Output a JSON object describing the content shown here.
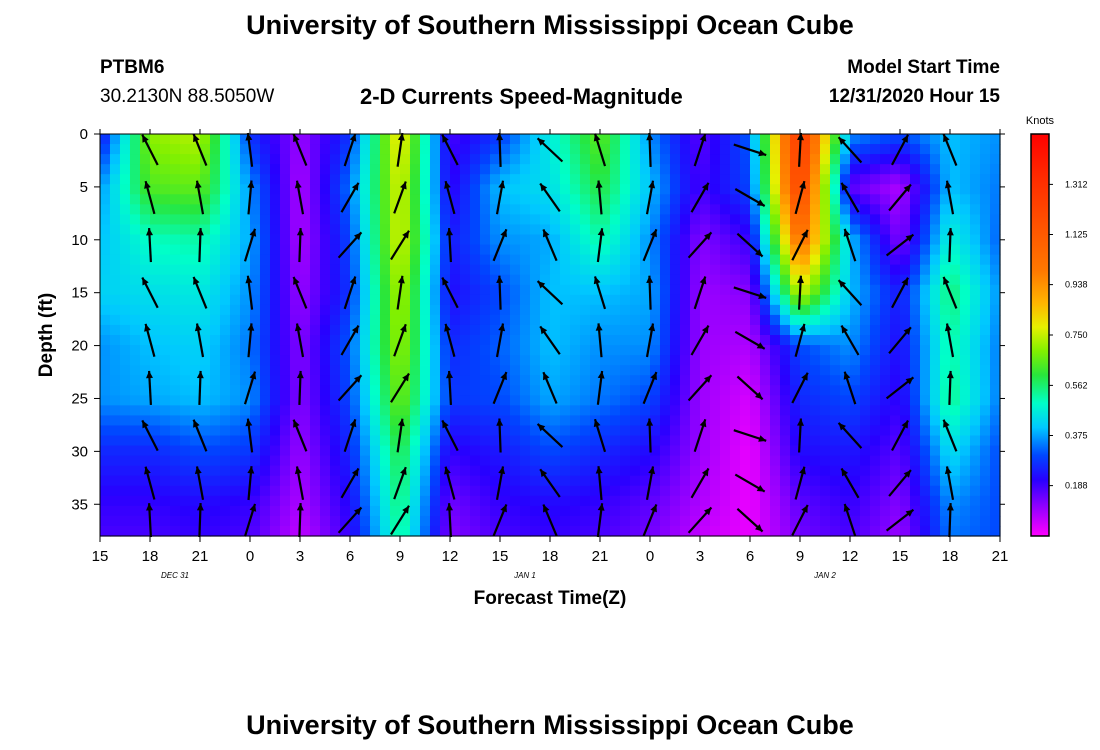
{
  "header": {
    "title": "University of Southern Mississippi Ocean Cube",
    "footer_title": "University of Southern Mississippi Ocean Cube",
    "station": "PTBM6",
    "coords": "30.2130N 88.5050W",
    "subtitle": "2-D Currents Speed-Magnitude",
    "model_label": "Model Start Time",
    "model_time": "12/31/2020 Hour 15"
  },
  "chart_data": {
    "type": "heatmap",
    "title": "2-D Currents Speed-Magnitude",
    "xlabel": "Forecast Time(Z)",
    "ylabel": "Depth (ft)",
    "x_ticks": [
      "15",
      "18",
      "21",
      "0",
      "3",
      "6",
      "9",
      "12",
      "15",
      "18",
      "21",
      "0",
      "3",
      "6",
      "9",
      "12",
      "15",
      "18",
      "21"
    ],
    "date_labels": [
      "DEC 31",
      "JAN 1",
      "JAN 2"
    ],
    "y_ticks": [
      "0",
      "5",
      "10",
      "15",
      "20",
      "25",
      "30",
      "35"
    ],
    "ylim": [
      0,
      38
    ],
    "colorbar": {
      "unit": "Knots",
      "labels": [
        "1.312",
        "1.125",
        "0.938",
        "0.750",
        "0.562",
        "0.375",
        "0.188"
      ],
      "range": [
        0,
        1.5
      ]
    },
    "times_hours": [
      15,
      18,
      21,
      24,
      27,
      30,
      33,
      36,
      39,
      42,
      45,
      48,
      51,
      54,
      57,
      60,
      63,
      66,
      69
    ],
    "depths_ft": [
      0,
      5,
      10,
      15,
      20,
      25,
      30,
      35,
      38
    ],
    "speed_knots": [
      [
        0.22,
        0.7,
        0.74,
        0.28,
        0.1,
        0.28,
        0.82,
        0.18,
        0.28,
        0.46,
        0.66,
        0.36,
        0.16,
        0.32,
        1.3,
        0.36,
        0.3,
        0.4,
        0.36
      ],
      [
        0.36,
        0.64,
        0.66,
        0.36,
        0.08,
        0.34,
        0.78,
        0.2,
        0.4,
        0.44,
        0.6,
        0.4,
        0.18,
        0.3,
        1.25,
        0.16,
        0.08,
        0.4,
        0.34
      ],
      [
        0.4,
        0.5,
        0.52,
        0.38,
        0.08,
        0.3,
        0.78,
        0.24,
        0.36,
        0.38,
        0.52,
        0.36,
        0.12,
        0.2,
        1.05,
        0.4,
        0.12,
        0.48,
        0.32
      ],
      [
        0.42,
        0.44,
        0.46,
        0.36,
        0.1,
        0.28,
        0.74,
        0.22,
        0.3,
        0.4,
        0.4,
        0.38,
        0.1,
        0.12,
        0.76,
        0.4,
        0.24,
        0.56,
        0.36
      ],
      [
        0.36,
        0.4,
        0.42,
        0.34,
        0.12,
        0.32,
        0.72,
        0.26,
        0.32,
        0.4,
        0.36,
        0.36,
        0.1,
        0.08,
        0.3,
        0.36,
        0.22,
        0.52,
        0.34
      ],
      [
        0.36,
        0.38,
        0.4,
        0.36,
        0.12,
        0.3,
        0.68,
        0.28,
        0.3,
        0.38,
        0.34,
        0.3,
        0.1,
        0.04,
        0.26,
        0.3,
        0.2,
        0.54,
        0.34
      ],
      [
        0.26,
        0.26,
        0.3,
        0.28,
        0.1,
        0.26,
        0.6,
        0.2,
        0.24,
        0.3,
        0.26,
        0.22,
        0.1,
        0.02,
        0.22,
        0.24,
        0.16,
        0.44,
        0.3
      ],
      [
        0.2,
        0.2,
        0.22,
        0.2,
        0.08,
        0.22,
        0.56,
        0.14,
        0.2,
        0.22,
        0.2,
        0.16,
        0.08,
        0.02,
        0.16,
        0.2,
        0.12,
        0.36,
        0.3
      ],
      [
        0.18,
        0.18,
        0.2,
        0.18,
        0.06,
        0.2,
        0.54,
        0.12,
        0.18,
        0.2,
        0.18,
        0.14,
        0.06,
        0.02,
        0.14,
        0.18,
        0.1,
        0.34,
        0.3
      ]
    ]
  }
}
